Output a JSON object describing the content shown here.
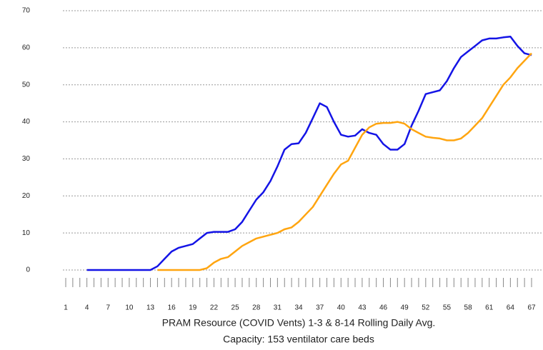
{
  "chart_data": {
    "type": "line",
    "title": "PRAM Resource (COVID Vents) 1-3 & 8-14 Rolling Daily Avg.",
    "subtitle": "Capacity: 153 ventilator care beds",
    "categories": [
      "1",
      null,
      null,
      "4",
      null,
      null,
      "7",
      null,
      null,
      "10",
      null,
      null,
      "13",
      null,
      null,
      "16",
      null,
      null,
      "19",
      null,
      null,
      "22",
      null,
      null,
      "25",
      null,
      null,
      "28",
      null,
      null,
      "31",
      null,
      null,
      "34",
      null,
      null,
      "37",
      null,
      null,
      "40",
      null,
      null,
      "43",
      null,
      null,
      "46",
      null,
      null,
      "49",
      null,
      null,
      "52",
      null,
      null,
      "55",
      null,
      null,
      "58",
      null,
      null,
      "61",
      null,
      null,
      "64",
      null,
      null,
      "67"
    ],
    "series": [
      {
        "color": "#1414e6",
        "values": [
          null,
          null,
          null,
          0,
          0,
          0,
          0,
          0,
          0,
          0,
          0,
          0,
          0,
          1,
          3,
          5,
          6,
          6.5,
          7,
          8.5,
          10,
          10.3,
          10.3,
          10.3,
          11,
          13,
          16,
          19,
          21,
          24,
          28,
          32.5,
          34,
          34.2,
          37,
          41,
          45,
          44,
          40,
          36.5,
          36,
          36.3,
          38,
          37,
          36.5,
          34,
          32.5,
          32.5,
          34,
          39,
          43,
          47.5,
          48,
          48.5,
          51,
          54.5,
          57.5,
          59,
          60.5,
          62,
          62.5,
          62.5,
          62.8,
          63,
          60.5,
          58.5,
          58
        ]
      },
      {
        "color": "#ffa510",
        "values": [
          null,
          null,
          null,
          null,
          null,
          null,
          null,
          null,
          null,
          null,
          null,
          null,
          null,
          0,
          0,
          0,
          0,
          0,
          0,
          0,
          0.5,
          2,
          3,
          3.5,
          5,
          6.5,
          7.5,
          8.5,
          9,
          9.5,
          10,
          11,
          11.5,
          13,
          15,
          17,
          20,
          23,
          26,
          28.5,
          29.5,
          33,
          36.5,
          38.5,
          39.5,
          39.7,
          39.7,
          40,
          39.5,
          38,
          37,
          36,
          35.7,
          35.5,
          35,
          35,
          35.5,
          37,
          39,
          41,
          44,
          47,
          50,
          52,
          54.5,
          56.5,
          58.5
        ]
      }
    ],
    "ylim": [
      0,
      70
    ],
    "yticks": [
      0,
      10,
      20,
      30,
      40,
      50,
      60,
      70
    ],
    "grid": true
  }
}
